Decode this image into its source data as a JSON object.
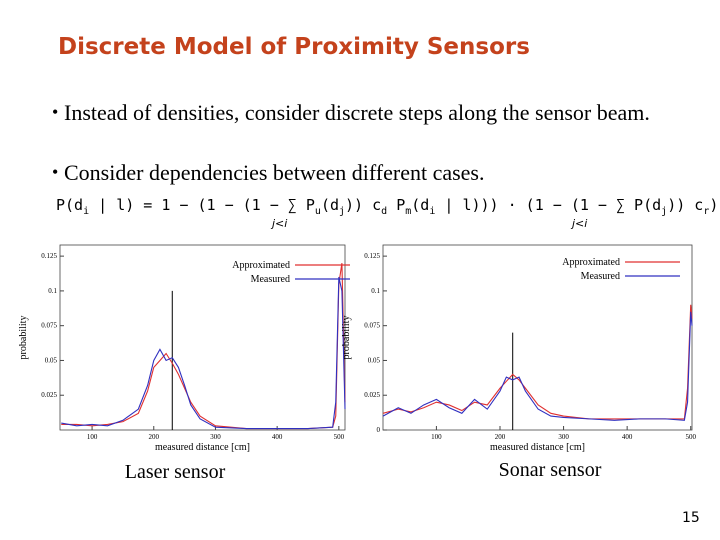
{
  "title": "Discrete Model of Proximity Sensors",
  "bullets": [
    "Instead of densities, consider discrete steps along the sensor beam.",
    "Consider dependencies between different cases."
  ],
  "formula": [
    "P(d",
    "i",
    " | l) = 1 − (1 − (1 − ∑ P",
    "u",
    "(d",
    "j",
    ")) c",
    "d",
    " P",
    "m",
    "(d",
    "i",
    " | l))) · (1 − (1 − ∑ P(d",
    "j",
    ")) c",
    "r",
    ")"
  ],
  "formula_sum_index": "j<i",
  "charts": [
    {
      "type": "line",
      "caption": "Laser sensor",
      "xlabel": "measured distance [cm]",
      "ylabel": "probability",
      "xlim": [
        48,
        510
      ],
      "ylim": [
        0,
        0.133
      ],
      "xticks": [
        100,
        200,
        300,
        400,
        500
      ],
      "yticks": [
        0.025,
        0.05,
        0.075,
        0.1,
        0.125
      ],
      "reference_line": {
        "x": 230,
        "y": 0.1
      },
      "x": [
        50,
        75,
        100,
        125,
        150,
        175,
        190,
        200,
        210,
        220,
        230,
        240,
        250,
        260,
        275,
        300,
        350,
        400,
        450,
        490,
        495,
        500,
        505,
        510
      ],
      "series": [
        {
          "name": "Approximated",
          "color": "#e03030",
          "values": [
            0.004,
            0.004,
            0.003,
            0.004,
            0.006,
            0.012,
            0.028,
            0.045,
            0.05,
            0.055,
            0.048,
            0.04,
            0.03,
            0.02,
            0.01,
            0.003,
            0.001,
            0.001,
            0.001,
            0.002,
            0.01,
            0.105,
            0.12,
            0.02
          ]
        },
        {
          "name": "Measured",
          "color": "#3030c0",
          "values": [
            0.005,
            0.003,
            0.004,
            0.003,
            0.007,
            0.015,
            0.032,
            0.05,
            0.058,
            0.05,
            0.052,
            0.045,
            0.032,
            0.018,
            0.008,
            0.002,
            0.001,
            0.001,
            0.001,
            0.002,
            0.02,
            0.11,
            0.1,
            0.015
          ]
        }
      ]
    },
    {
      "type": "line",
      "caption": "Sonar sensor",
      "xlabel": "measured distance [cm]",
      "ylabel": "probability",
      "xlim": [
        16,
        502
      ],
      "ylim": [
        0,
        0.133
      ],
      "xticks": [
        100,
        200,
        300,
        400,
        500
      ],
      "yticks": [
        0,
        0.025,
        0.05,
        0.075,
        0.1,
        0.125
      ],
      "reference_line": {
        "x": 220,
        "y": 0.07
      },
      "x": [
        16,
        40,
        60,
        80,
        100,
        120,
        140,
        160,
        180,
        200,
        210,
        220,
        230,
        240,
        260,
        280,
        300,
        340,
        380,
        420,
        460,
        490,
        495,
        500,
        502
      ],
      "series": [
        {
          "name": "Approximated",
          "color": "#e03030",
          "values": [
            0.012,
            0.015,
            0.013,
            0.016,
            0.02,
            0.018,
            0.014,
            0.02,
            0.018,
            0.03,
            0.035,
            0.04,
            0.036,
            0.03,
            0.018,
            0.012,
            0.01,
            0.008,
            0.008,
            0.008,
            0.008,
            0.008,
            0.03,
            0.09,
            0.08
          ]
        },
        {
          "name": "Measured",
          "color": "#3030c0",
          "values": [
            0.01,
            0.016,
            0.012,
            0.018,
            0.022,
            0.016,
            0.012,
            0.022,
            0.015,
            0.028,
            0.038,
            0.036,
            0.038,
            0.028,
            0.015,
            0.01,
            0.009,
            0.008,
            0.007,
            0.008,
            0.008,
            0.007,
            0.02,
            0.085,
            0.075
          ]
        }
      ]
    }
  ],
  "page_number": "15"
}
